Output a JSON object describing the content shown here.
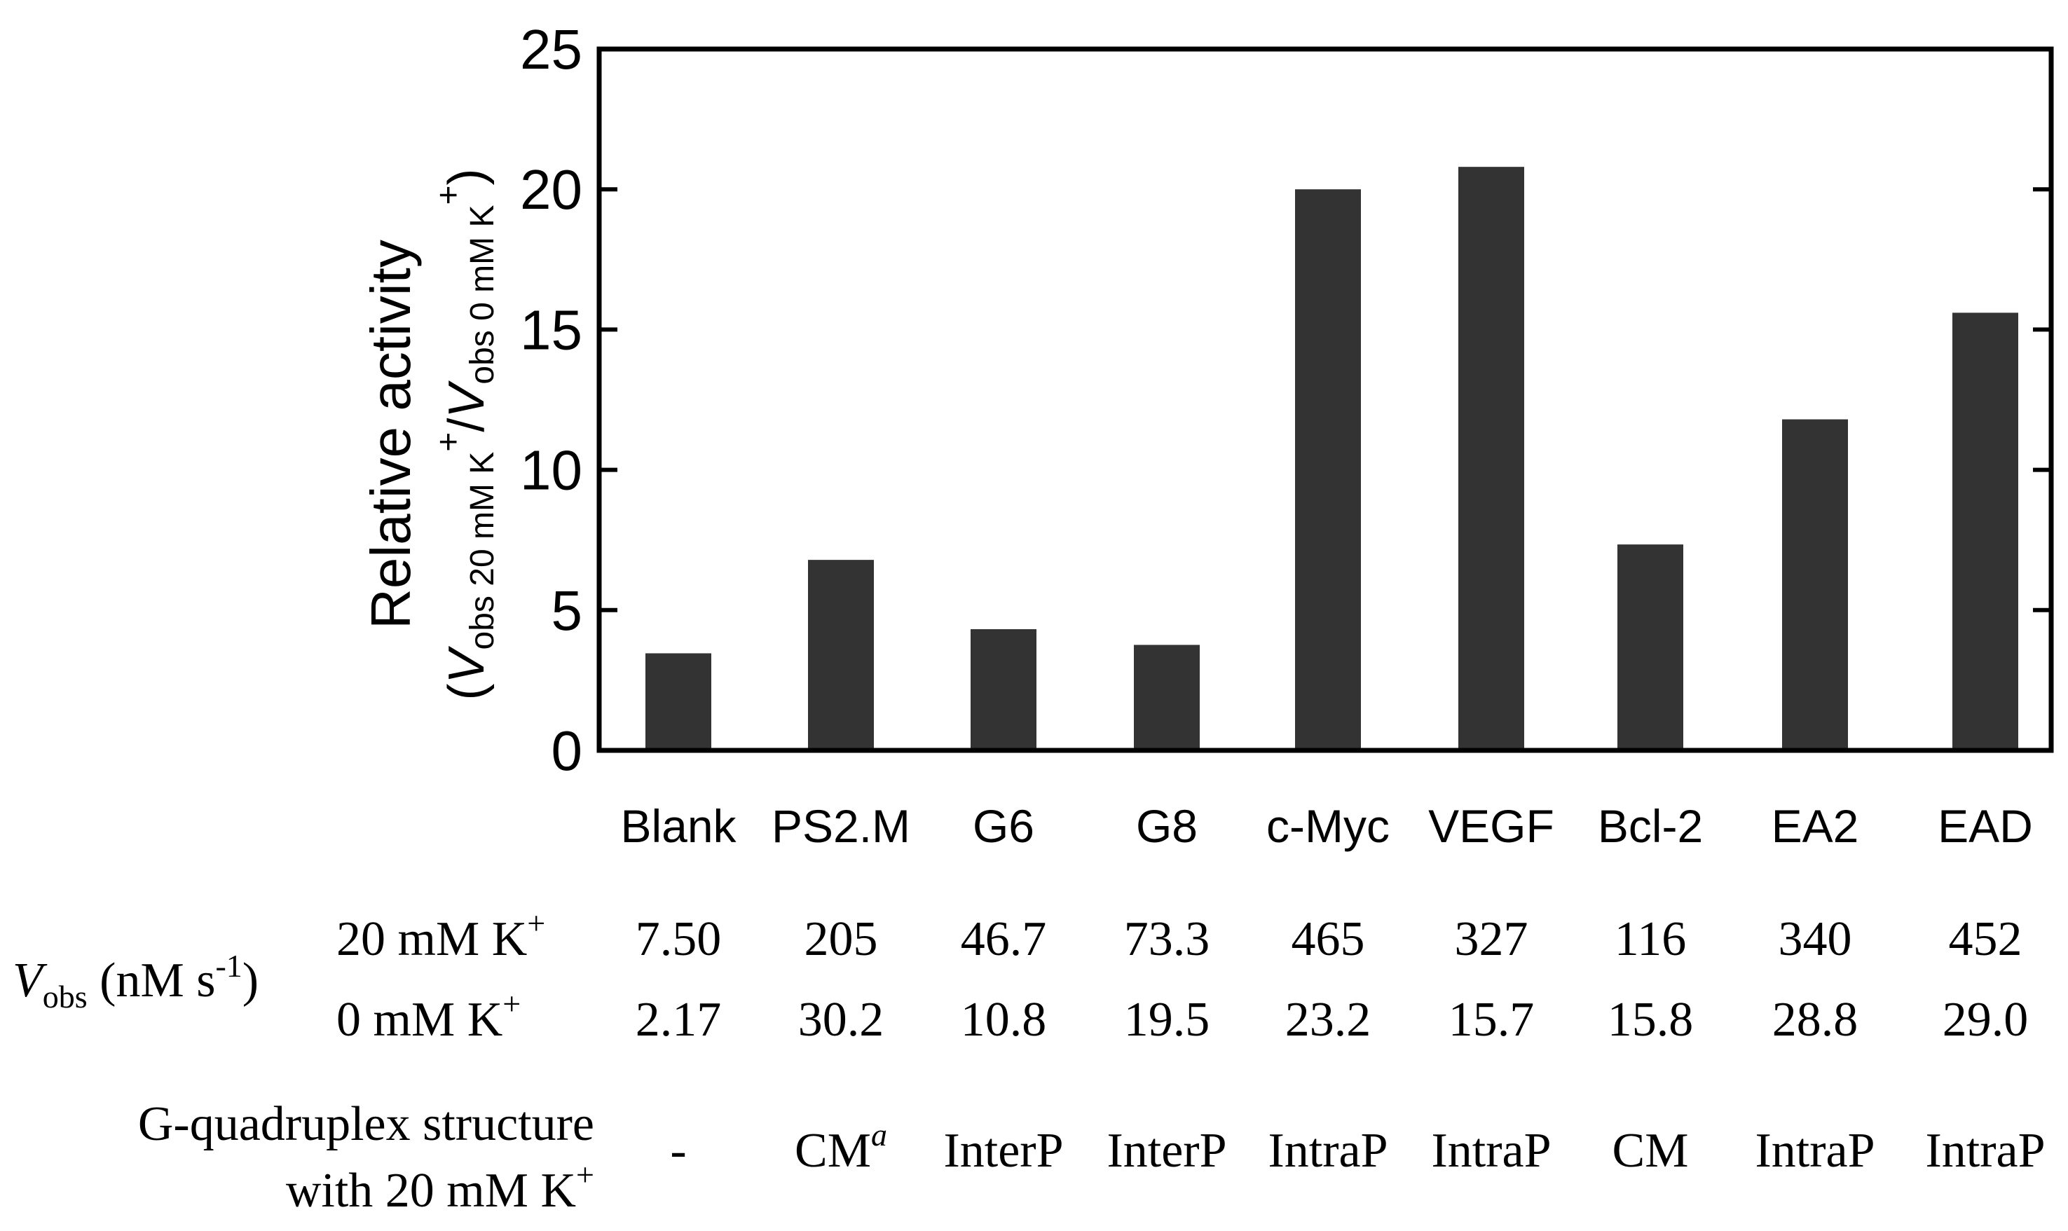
{
  "chart_data": {
    "type": "bar",
    "categories": [
      "Blank",
      "PS2.M",
      "G6",
      "G8",
      "c-Myc",
      "VEGF",
      "Bcl-2",
      "EA2",
      "EAD"
    ],
    "values": [
      3.46,
      6.79,
      4.32,
      3.76,
      20.0,
      20.8,
      7.34,
      11.8,
      15.6
    ],
    "ylim": [
      0,
      25
    ],
    "yticks": [
      "0",
      "5",
      "10",
      "15",
      "20",
      "25"
    ],
    "grid": false,
    "legend": "none",
    "bar_color": "#333333",
    "ylabel": {
      "line1": "Relative activity",
      "open_paren": "(",
      "v1": "V",
      "sub1": "obs 20 mM K",
      "sup1": "+",
      "slash": "/",
      "v2": "V",
      "sub2": "obs 0 mM K",
      "sup2": "+",
      "close_paren": ")"
    }
  },
  "table": {
    "vobs_label": {
      "v": "V",
      "sub": "obs",
      "unit": " (nM s",
      "unit_sup": "-1",
      "unit_close": ")"
    },
    "row_20": {
      "label": "20 mM K",
      "label_sup": "+",
      "values": [
        "7.50",
        "205",
        "46.7",
        "73.3",
        "465",
        "327",
        "116",
        "340",
        "452"
      ]
    },
    "row_0": {
      "label": "0 mM K",
      "label_sup": "+",
      "values": [
        "2.17",
        "30.2",
        "10.8",
        "19.5",
        "23.2",
        "15.7",
        "15.8",
        "28.8",
        "29.0"
      ]
    },
    "structure": {
      "label_line1": "G-quadruplex structure",
      "label_line2": "with 20 mM K",
      "label_line2_sup": "+",
      "values": [
        "-",
        "CM",
        "InterP",
        "InterP",
        "IntraP",
        "IntraP",
        "CM",
        "IntraP",
        "IntraP"
      ],
      "ps2m_sup": "a"
    }
  }
}
